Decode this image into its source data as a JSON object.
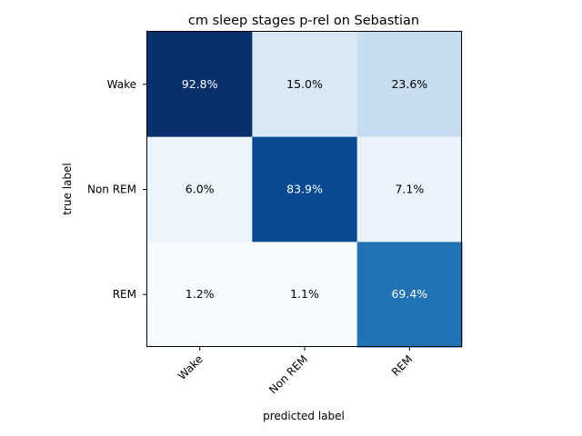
{
  "chart_data": {
    "type": "heatmap",
    "title": "cm sleep stages p-rel on Sebastian",
    "xlabel": "predicted label",
    "ylabel": "true label",
    "x_categories": [
      "Wake",
      "Non REM",
      "REM"
    ],
    "y_categories": [
      "Wake",
      "Non REM",
      "REM"
    ],
    "values": [
      [
        92.8,
        15.0,
        23.6
      ],
      [
        6.0,
        83.9,
        7.1
      ],
      [
        1.2,
        1.1,
        69.4
      ]
    ],
    "cell_labels": [
      [
        "92.8%",
        "15.0%",
        "23.6%"
      ],
      [
        "6.0%",
        "83.9%",
        "7.1%"
      ],
      [
        "1.2%",
        "1.1%",
        "69.4%"
      ]
    ],
    "colormap": "Blues",
    "label_colors": {
      "dark_cell": "#ffffff",
      "light_cell": "#000000"
    }
  }
}
